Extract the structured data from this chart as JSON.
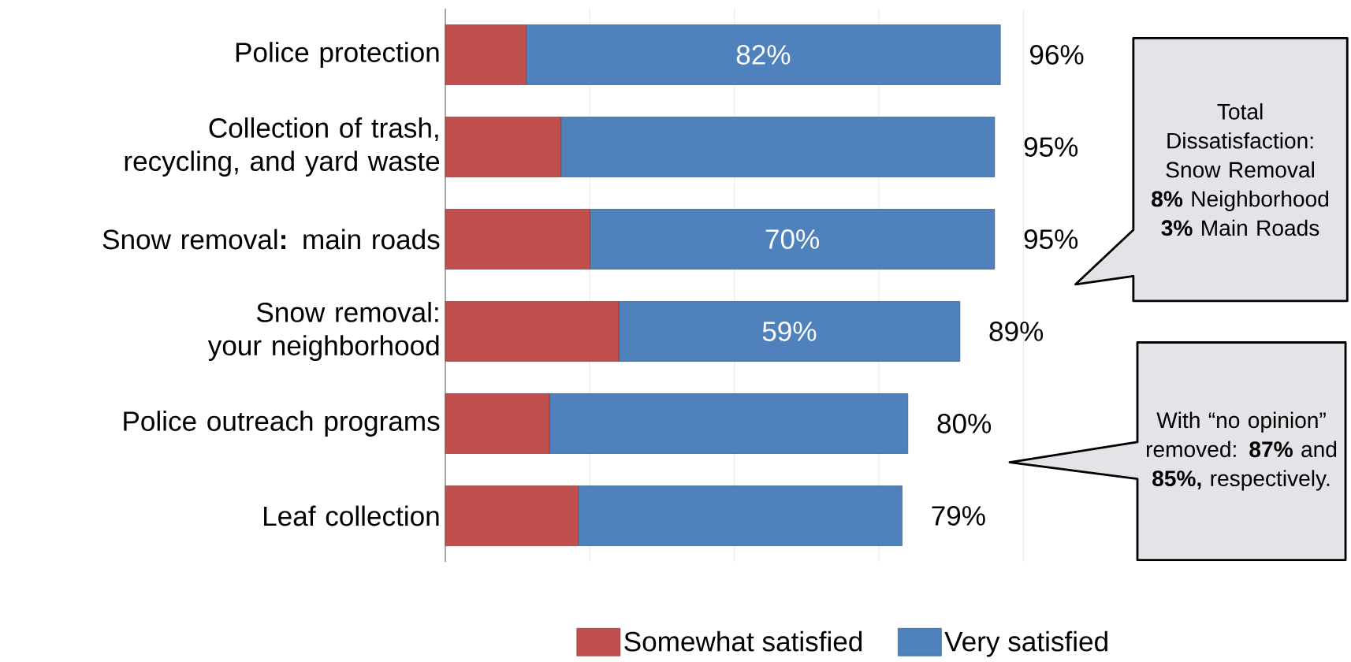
{
  "chart_data": {
    "type": "bar",
    "orientation": "horizontal",
    "stacked": true,
    "categories": [
      "Police protection",
      "Collection of trash, recycling, and yard waste",
      "Snow removal**:** main roads",
      "Snow removal: your neighborhood",
      "Police outreach programs",
      "Leaf collection"
    ],
    "series": [
      {
        "name": "Somewhat satisfied",
        "color": "#c0504d",
        "values": [
          14,
          20,
          25,
          30,
          18,
          23
        ]
      },
      {
        "name": "Very satisfied",
        "color": "#4f81bd",
        "values": [
          82,
          75,
          70,
          59,
          62,
          56
        ],
        "value_labels": [
          "82%",
          null,
          "70%",
          "59%",
          null,
          null
        ]
      }
    ],
    "totals": [
      "96%",
      "95%",
      "95%",
      "89%",
      "80%",
      "79%"
    ],
    "xlim": [
      0,
      100
    ],
    "xticks": [
      {
        "value": 25,
        "label": null
      },
      {
        "value": 50,
        "label": null
      },
      {
        "value": 75,
        "label": null
      },
      {
        "value": 100,
        "label": null
      }
    ],
    "tick_labels": "y",
    "grid": "x",
    "legend": "bottom",
    "annotations": [
      "Total Dissatisfaction: Snow Removal **8%** Neighborhood **3%** Main Roads",
      "With “no opinion” removed: **87%** and **85%,** respectively."
    ]
  }
}
